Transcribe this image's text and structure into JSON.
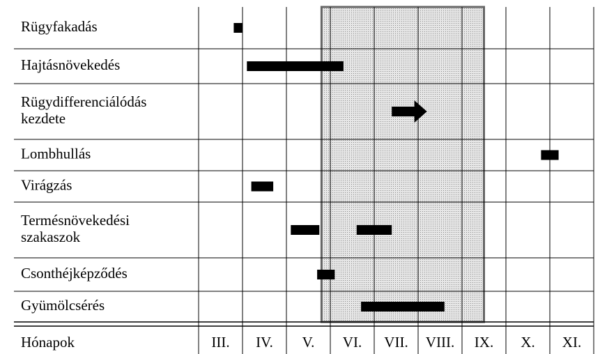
{
  "chart_data": {
    "type": "gantt",
    "axis_label": "Hónapok",
    "months": [
      "III.",
      "IV.",
      "V.",
      "VI.",
      "VII.",
      "VIII.",
      "IX.",
      "X.",
      "XI."
    ],
    "xlim": [
      3,
      12
    ],
    "highlight": [
      5.8,
      9.5
    ],
    "rows": [
      {
        "label": [
          "Rügyfakadás"
        ],
        "bars": [
          {
            "start": 3.8,
            "end": 4.0
          }
        ]
      },
      {
        "label": [
          "Hajtásnövekedés"
        ],
        "bars": [
          {
            "start": 4.1,
            "end": 6.3
          }
        ]
      },
      {
        "label": [
          "Rügydifferenciálódás",
          "kezdete"
        ],
        "bars": [
          {
            "start": 7.4,
            "end": 8.2,
            "shape": "arrow"
          }
        ]
      },
      {
        "label": [
          "Lombhullás"
        ],
        "bars": [
          {
            "start": 10.8,
            "end": 11.2
          }
        ]
      },
      {
        "label": [
          "Virágzás"
        ],
        "bars": [
          {
            "start": 4.2,
            "end": 4.7
          }
        ]
      },
      {
        "label": [
          "Termésnövekedési",
          "szakaszok"
        ],
        "bars": [
          {
            "start": 5.1,
            "end": 5.75
          },
          {
            "start": 6.6,
            "end": 7.4
          }
        ]
      },
      {
        "label": [
          "Csonthéjképződés"
        ],
        "bars": [
          {
            "start": 5.7,
            "end": 6.1
          }
        ]
      },
      {
        "label": [
          "Gyümölcsérés"
        ],
        "bars": [
          {
            "start": 6.7,
            "end": 8.6
          }
        ]
      }
    ]
  }
}
